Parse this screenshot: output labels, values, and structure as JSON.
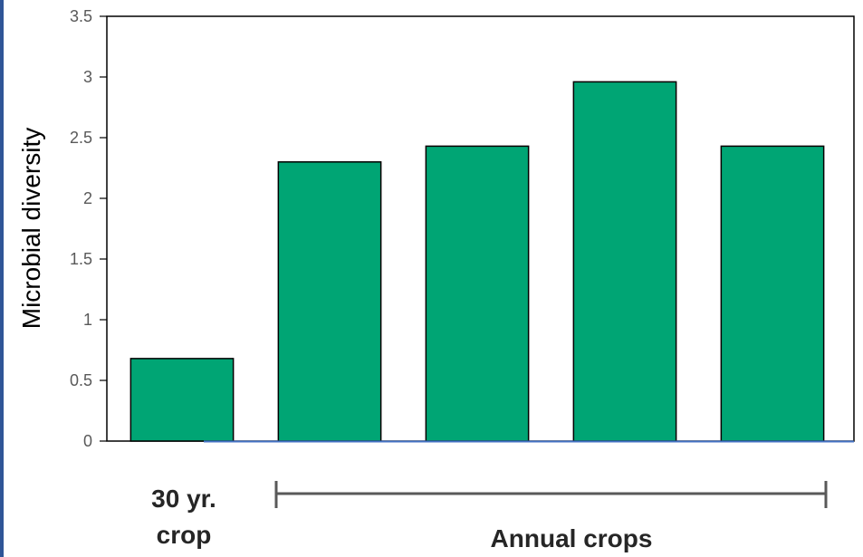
{
  "colors": {
    "bar_fill": "#00A574",
    "bar_stroke": "#000000",
    "frame": "#000000",
    "baseline_accent": "#4472C4",
    "left_border": "#2F5597",
    "group_bracket": "#595959"
  },
  "chart_data": {
    "type": "bar",
    "title": "",
    "xlabel": "",
    "ylabel": "Microbial diversity",
    "ylim": [
      0,
      3.5
    ],
    "yticks": [
      "0",
      "0.5",
      "1",
      "1.5",
      "2",
      "2.5",
      "3",
      "3.5"
    ],
    "ytick_values": [
      0,
      0.5,
      1,
      1.5,
      2,
      2.5,
      3,
      3.5
    ],
    "values": [
      0.68,
      2.3,
      2.43,
      2.96,
      2.43
    ],
    "grid": false,
    "legend": "none",
    "groups": [
      {
        "label_lines": [
          "30 yr.",
          "crop"
        ],
        "bars": [
          0
        ]
      },
      {
        "label": "Annual crops",
        "bars": [
          1,
          2,
          3,
          4
        ]
      }
    ]
  }
}
